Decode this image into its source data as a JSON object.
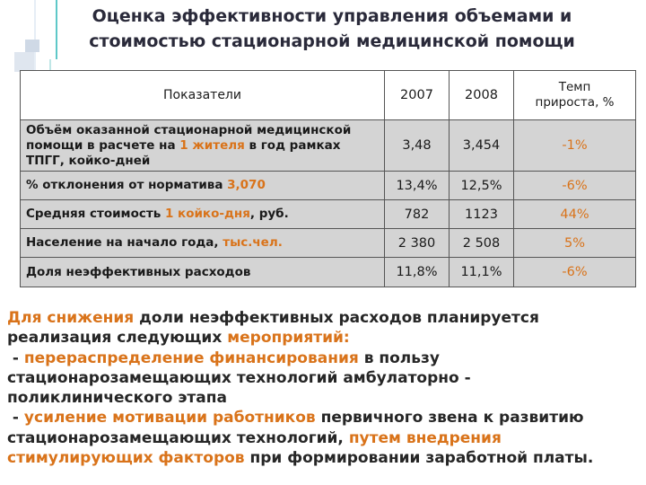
{
  "title": {
    "line1": "Оценка эффективности управления объемами и",
    "line2": "стоимостью стационарной медицинской помощи"
  },
  "table": {
    "headers": {
      "indicator": "Показатели",
      "y2007": "2007",
      "y2008": "2008",
      "rate_line1": "Темп",
      "rate_line2": "прироста, %"
    },
    "rows": [
      {
        "label_a": "Объём оказанной стационарной медицинской помощи в расчете на ",
        "label_hl": "1 жителя",
        "label_b": " в год рамках ТПГГ, койко-дней",
        "v2007": "3,48",
        "v2008": "3,454",
        "rate": "-1%"
      },
      {
        "label_a": "% отклонения от норматива ",
        "label_hl": "3,070",
        "label_b": "",
        "v2007": "13,4%",
        "v2008": "12,5%",
        "rate": "-6%"
      },
      {
        "label_a": "Средняя стоимость ",
        "label_hl": "1 койко-дня",
        "label_b": ", руб.",
        "v2007": "782",
        "v2008": "1123",
        "rate": "44%"
      },
      {
        "label_a": "Население на начало года, ",
        "label_hl": "тыс.чел.",
        "label_b": "",
        "v2007": "2 380",
        "v2008": "2 508",
        "rate": "5%"
      },
      {
        "label_a": "Доля неэффективных расходов",
        "label_hl": "",
        "label_b": "",
        "v2007": "11,8%",
        "v2008": "11,1%",
        "rate": "-6%"
      }
    ]
  },
  "paragraph": {
    "l1_hl": "Для снижения",
    "l1_rest": " доли неэффективных расходов планируется",
    "l2_a": "реализация следующих ",
    "l2_hl": "мероприятий:",
    "l3_a": " - ",
    "l3_hl": "перераспределение финансирования",
    "l3_b": " в пользу",
    "l4": "стационарозамещающих технологий амбулаторно -",
    "l5": "поликлинического этапа",
    "l6_a": " - ",
    "l6_hl": "усиление мотивации работников",
    "l6_b": " первичного звена к развитию",
    "l7_a": "стационарозамещающих технологий, ",
    "l7_hl": "путем внедрения",
    "l8_hl": "стимулирующих факторов",
    "l8_b": " при формировании заработной платы."
  },
  "colors": {
    "accent": "#d9731a",
    "row_bg": "#d4d4d4",
    "title": "#2a2a3a",
    "deco_teal": "#5ec8c8"
  }
}
